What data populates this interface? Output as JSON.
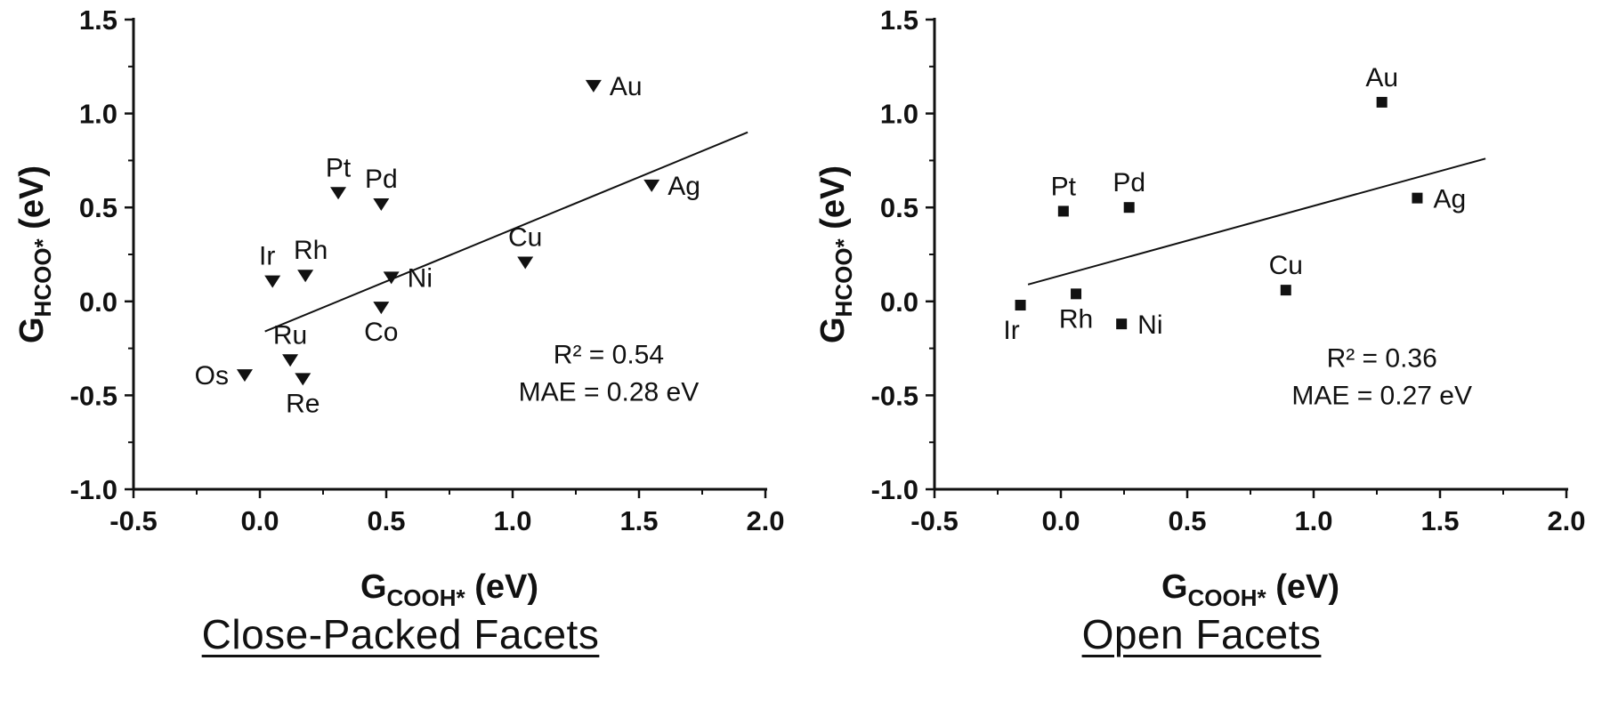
{
  "colors": {
    "fg": "#111111",
    "bg": "#ffffff"
  },
  "chart_data": [
    {
      "type": "scatter",
      "title": "Close-Packed Facets",
      "marker": "triangle-down",
      "xlabel": {
        "base": "G",
        "sub": "COOH*",
        "rest": " (eV)"
      },
      "ylabel": {
        "base": "G",
        "sub": "HCOO*",
        "rest": " (eV)"
      },
      "xlim": [
        -0.5,
        2.0
      ],
      "ylim": [
        -1.0,
        1.5
      ],
      "xticks": [
        -0.5,
        0.0,
        0.5,
        1.0,
        1.5,
        2.0
      ],
      "yticks": [
        -1.0,
        -0.5,
        0.0,
        0.5,
        1.0,
        1.5
      ],
      "grid": false,
      "fit_line": {
        "x1": 0.02,
        "y1": -0.16,
        "x2": 1.93,
        "y2": 0.9
      },
      "annotation": {
        "lines": [
          "R² = 0.54",
          "MAE = 0.28 eV"
        ],
        "x": 1.38,
        "y": -0.33
      },
      "points": [
        {
          "label": "Au",
          "x": 1.32,
          "y": 1.15,
          "label_pos": "right"
        },
        {
          "label": "Ag",
          "x": 1.55,
          "y": 0.62,
          "label_pos": "right"
        },
        {
          "label": "Pt",
          "x": 0.31,
          "y": 0.58,
          "label_pos": "above"
        },
        {
          "label": "Pd",
          "x": 0.48,
          "y": 0.52,
          "label_pos": "above"
        },
        {
          "label": "Cu",
          "x": 1.05,
          "y": 0.21,
          "label_pos": "above"
        },
        {
          "label": "Ir",
          "x": 0.05,
          "y": 0.11,
          "label_pos": "above",
          "dx": -6
        },
        {
          "label": "Rh",
          "x": 0.18,
          "y": 0.14,
          "label_pos": "above",
          "dx": 6
        },
        {
          "label": "Ni",
          "x": 0.52,
          "y": 0.13,
          "label_pos": "right"
        },
        {
          "label": "Co",
          "x": 0.48,
          "y": -0.03,
          "label_pos": "below"
        },
        {
          "label": "Ru",
          "x": 0.12,
          "y": -0.31,
          "label_pos": "above"
        },
        {
          "label": "Os",
          "x": -0.06,
          "y": -0.39,
          "label_pos": "left"
        },
        {
          "label": "Re",
          "x": 0.17,
          "y": -0.41,
          "label_pos": "below"
        }
      ]
    },
    {
      "type": "scatter",
      "title": "Open Facets",
      "marker": "square",
      "xlabel": {
        "base": "G",
        "sub": "COOH*",
        "rest": " (eV)"
      },
      "ylabel": {
        "base": "G",
        "sub": "HCOO*",
        "rest": " (eV)"
      },
      "xlim": [
        -0.5,
        2.0
      ],
      "ylim": [
        -1.0,
        1.5
      ],
      "xticks": [
        -0.5,
        0.0,
        0.5,
        1.0,
        1.5,
        2.0
      ],
      "yticks": [
        -1.0,
        -0.5,
        0.0,
        0.5,
        1.0,
        1.5
      ],
      "grid": false,
      "fit_line": {
        "x1": -0.13,
        "y1": 0.09,
        "x2": 1.68,
        "y2": 0.76
      },
      "annotation": {
        "lines": [
          "R² = 0.36",
          "MAE = 0.27 eV"
        ],
        "x": 1.27,
        "y": -0.35
      },
      "points": [
        {
          "label": "Au",
          "x": 1.27,
          "y": 1.06,
          "label_pos": "above"
        },
        {
          "label": "Ag",
          "x": 1.41,
          "y": 0.55,
          "label_pos": "right"
        },
        {
          "label": "Pt",
          "x": 0.01,
          "y": 0.48,
          "label_pos": "above"
        },
        {
          "label": "Pd",
          "x": 0.27,
          "y": 0.5,
          "label_pos": "above"
        },
        {
          "label": "Cu",
          "x": 0.89,
          "y": 0.06,
          "label_pos": "above"
        },
        {
          "label": "Ir",
          "x": -0.16,
          "y": -0.02,
          "label_pos": "below",
          "dx": -10
        },
        {
          "label": "Rh",
          "x": 0.06,
          "y": 0.04,
          "label_pos": "below"
        },
        {
          "label": "Ni",
          "x": 0.24,
          "y": -0.12,
          "label_pos": "right"
        }
      ]
    }
  ]
}
